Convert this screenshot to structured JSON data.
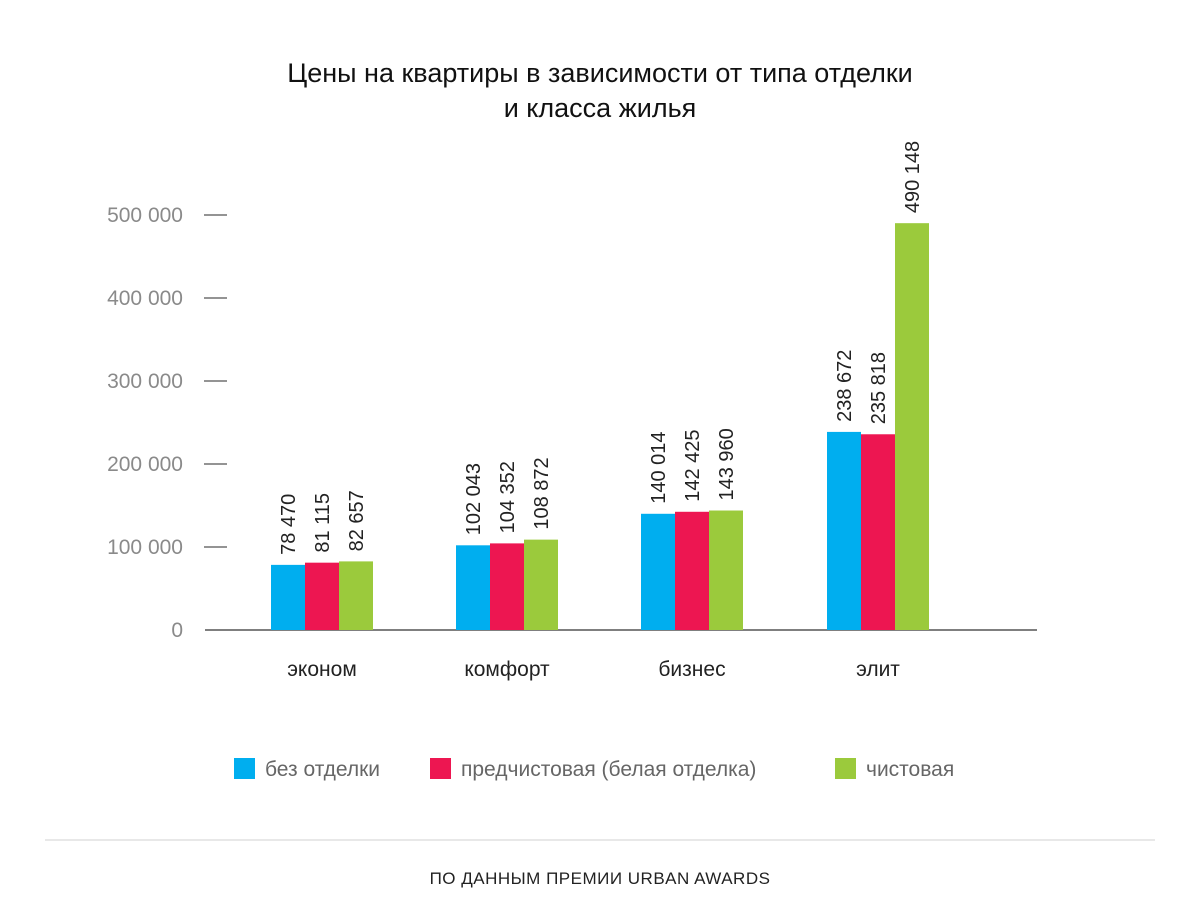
{
  "chart_data": {
    "type": "bar",
    "title": [
      "Цены на квартиры в зависимости от типа отделки",
      "и класса жилья"
    ],
    "categories": [
      "эконом",
      "комфорт",
      "бизнес",
      "элит"
    ],
    "series": [
      {
        "name": "без отделки",
        "color": "#00AEEF",
        "values": [
          78470,
          102043,
          140014,
          238672
        ],
        "labels": [
          "78 470",
          "102 043",
          "140 014",
          "238 672"
        ]
      },
      {
        "name": "предчистовая (белая отделка)",
        "color": "#ED1651",
        "values": [
          81115,
          104352,
          142425,
          235818
        ],
        "labels": [
          "81 115",
          "104 352",
          "142 425",
          "235 818"
        ]
      },
      {
        "name": "чистовая",
        "color": "#9BCA3C",
        "values": [
          82657,
          108872,
          143960,
          490148
        ],
        "labels": [
          "82 657",
          "108 872",
          "143 960",
          "490 148"
        ]
      }
    ],
    "yticks": [
      0,
      100000,
      200000,
      300000,
      400000,
      500000
    ],
    "ytick_labels": [
      "0",
      "100 000",
      "200 000",
      "300 000",
      "400 000",
      "500 000"
    ],
    "ylim": [
      0,
      500000
    ],
    "xlabel": "",
    "ylabel": "",
    "legend_position": "bottom",
    "grid": false
  },
  "footer": "ПО ДАННЫМ ПРЕМИИ URBAN AWARDS"
}
